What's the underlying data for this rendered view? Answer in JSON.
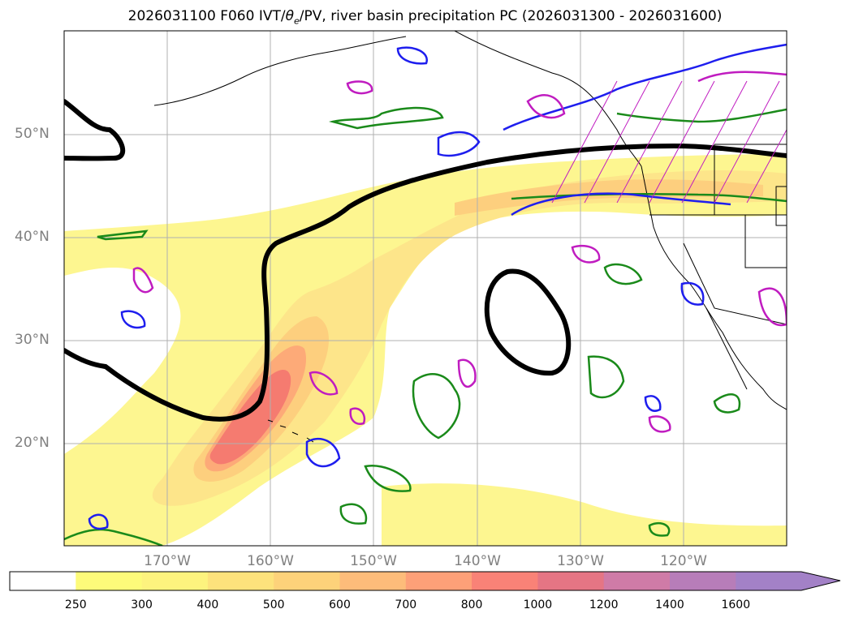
{
  "title": {
    "prefix": "2026031100 F060 IVT/",
    "theta": "θ",
    "theta_sub": "e",
    "suffix": "/PV, river basin precipitation PC (2026031300 - 2026031600)"
  },
  "latitude_labels": [
    "50°N",
    "40°N",
    "30°N",
    "20°N"
  ],
  "longitude_labels": [
    "170°W",
    "160°W",
    "150°W",
    "140°W",
    "130°W",
    "120°W"
  ],
  "colorbar": {
    "levels": [
      "250",
      "300",
      "400",
      "500",
      "600",
      "700",
      "800",
      "1000",
      "1200",
      "1400",
      "1600"
    ],
    "colors": [
      "#ffffff",
      "#fdfb7a",
      "#fdf37e",
      "#fde27c",
      "#fdd27a",
      "#fdbc7a",
      "#fda078",
      "#f98277",
      "#e57584",
      "#cf7ba7",
      "#b77db9",
      "#a381c7"
    ],
    "extend": "max"
  },
  "legend_colors": {
    "ivt_fill_low": "#fdf690",
    "ivt_fill_high": "#f57b70",
    "pv_contour": "#000000",
    "theta_contour_green": "#1a8a1a",
    "theta_contour_blue": "#1e1eee",
    "theta_contour_magenta": "#c01cc0",
    "coastline": "#000000",
    "gridline": "#b0b0b0"
  }
}
